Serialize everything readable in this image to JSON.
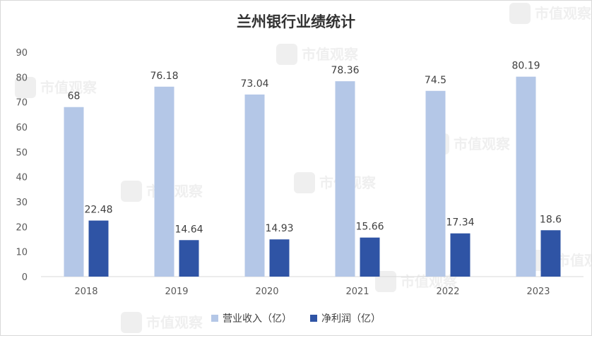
{
  "chart_data": {
    "type": "bar",
    "title": "兰州银行业绩统计",
    "categories": [
      "2018",
      "2019",
      "2020",
      "2021",
      "2022",
      "2023"
    ],
    "series": [
      {
        "name": "营业收入（亿）",
        "color": "#b4c7e7",
        "values": [
          68,
          76.18,
          73.04,
          78.36,
          74.5,
          80.19
        ],
        "labels": [
          "68",
          "76.18",
          "73.04",
          "78.36",
          "74.5",
          "80.19"
        ]
      },
      {
        "name": "净利润（亿）",
        "color": "#2f54a5",
        "values": [
          22.48,
          14.64,
          14.93,
          15.66,
          17.34,
          18.6
        ],
        "labels": [
          "22.48",
          "14.64",
          "14.93",
          "15.66",
          "17.34",
          "18.6"
        ]
      }
    ],
    "ylim": [
      0,
      90
    ],
    "yticks": [
      "0",
      "10",
      "20",
      "30",
      "40",
      "50",
      "60",
      "70",
      "80",
      "90"
    ],
    "grid": false,
    "legend_position": "bottom-center"
  },
  "watermark": {
    "text": "市值观察"
  }
}
